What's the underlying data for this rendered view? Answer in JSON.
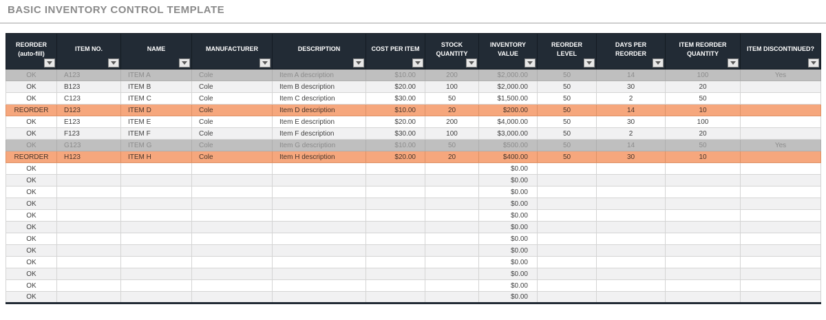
{
  "page": {
    "title": "BASIC INVENTORY CONTROL TEMPLATE"
  },
  "colors": {
    "header_bg": "#222B35",
    "reorder_row_bg": "#F6A77D",
    "discontinued_row_bg": "#BFBFBF",
    "discontinued_text": "#8C8C8C",
    "alt_row_bg": "#F1F1F2",
    "title_text": "#8A8A8A",
    "grid_line": "#D4D4D4"
  },
  "icons": {
    "filter_dropdown": "chevron-down triangle in gray square button"
  },
  "table": {
    "columns": [
      {
        "label": "REORDER (auto-fill)"
      },
      {
        "label": "ITEM NO."
      },
      {
        "label": "NAME"
      },
      {
        "label": "MANUFACTURER"
      },
      {
        "label": "DESCRIPTION"
      },
      {
        "label": "COST PER ITEM"
      },
      {
        "label": "STOCK QUANTITY"
      },
      {
        "label": "INVENTORY VALUE"
      },
      {
        "label": "REORDER LEVEL"
      },
      {
        "label": "DAYS PER REORDER"
      },
      {
        "label": "ITEM REORDER QUANTITY"
      },
      {
        "label": "ITEM DISCONTINUED?"
      }
    ],
    "rows": [
      {
        "status": "OK",
        "item_no": "A123",
        "name": "ITEM A",
        "manufacturer": "Cole",
        "description": "Item A description",
        "cost_per_item": "$10.00",
        "stock_quantity": "200",
        "inventory_value": "$2,000.00",
        "reorder_level": "50",
        "days_per_reorder": "14",
        "item_reorder_quantity": "100",
        "item_discontinued": "Yes",
        "variant": "gray"
      },
      {
        "status": "OK",
        "item_no": "B123",
        "name": "ITEM B",
        "manufacturer": "Cole",
        "description": "Item B description",
        "cost_per_item": "$20.00",
        "stock_quantity": "100",
        "inventory_value": "$2,000.00",
        "reorder_level": "50",
        "days_per_reorder": "30",
        "item_reorder_quantity": "20",
        "item_discontinued": "",
        "variant": "alt"
      },
      {
        "status": "OK",
        "item_no": "C123",
        "name": "ITEM C",
        "manufacturer": "Cole",
        "description": "Item C description",
        "cost_per_item": "$30.00",
        "stock_quantity": "50",
        "inventory_value": "$1,500.00",
        "reorder_level": "50",
        "days_per_reorder": "2",
        "item_reorder_quantity": "50",
        "item_discontinued": "",
        "variant": "white"
      },
      {
        "status": "REORDER",
        "item_no": "D123",
        "name": "ITEM D",
        "manufacturer": "Cole",
        "description": "Item D description",
        "cost_per_item": "$10.00",
        "stock_quantity": "20",
        "inventory_value": "$200.00",
        "reorder_level": "50",
        "days_per_reorder": "14",
        "item_reorder_quantity": "10",
        "item_discontinued": "",
        "variant": "orange"
      },
      {
        "status": "OK",
        "item_no": "E123",
        "name": "ITEM E",
        "manufacturer": "Cole",
        "description": "Item E description",
        "cost_per_item": "$20.00",
        "stock_quantity": "200",
        "inventory_value": "$4,000.00",
        "reorder_level": "50",
        "days_per_reorder": "30",
        "item_reorder_quantity": "100",
        "item_discontinued": "",
        "variant": "white"
      },
      {
        "status": "OK",
        "item_no": "F123",
        "name": "ITEM F",
        "manufacturer": "Cole",
        "description": "Item F description",
        "cost_per_item": "$30.00",
        "stock_quantity": "100",
        "inventory_value": "$3,000.00",
        "reorder_level": "50",
        "days_per_reorder": "2",
        "item_reorder_quantity": "20",
        "item_discontinued": "",
        "variant": "alt"
      },
      {
        "status": "OK",
        "item_no": "G123",
        "name": "ITEM G",
        "manufacturer": "Cole",
        "description": "Item G description",
        "cost_per_item": "$10.00",
        "stock_quantity": "50",
        "inventory_value": "$500.00",
        "reorder_level": "50",
        "days_per_reorder": "14",
        "item_reorder_quantity": "50",
        "item_discontinued": "Yes",
        "variant": "gray"
      },
      {
        "status": "REORDER",
        "item_no": "H123",
        "name": "ITEM H",
        "manufacturer": "Cole",
        "description": "Item H description",
        "cost_per_item": "$20.00",
        "stock_quantity": "20",
        "inventory_value": "$400.00",
        "reorder_level": "50",
        "days_per_reorder": "30",
        "item_reorder_quantity": "10",
        "item_discontinued": "",
        "variant": "orange"
      }
    ],
    "empty_rows": [
      {
        "status": "OK",
        "inventory_value": "$0.00",
        "variant": "white"
      },
      {
        "status": "OK",
        "inventory_value": "$0.00",
        "variant": "alt"
      },
      {
        "status": "OK",
        "inventory_value": "$0.00",
        "variant": "white"
      },
      {
        "status": "OK",
        "inventory_value": "$0.00",
        "variant": "alt"
      },
      {
        "status": "OK",
        "inventory_value": "$0.00",
        "variant": "white"
      },
      {
        "status": "OK",
        "inventory_value": "$0.00",
        "variant": "alt"
      },
      {
        "status": "OK",
        "inventory_value": "$0.00",
        "variant": "white"
      },
      {
        "status": "OK",
        "inventory_value": "$0.00",
        "variant": "alt"
      },
      {
        "status": "OK",
        "inventory_value": "$0.00",
        "variant": "white"
      },
      {
        "status": "OK",
        "inventory_value": "$0.00",
        "variant": "alt"
      },
      {
        "status": "OK",
        "inventory_value": "$0.00",
        "variant": "white"
      },
      {
        "status": "OK",
        "inventory_value": "$0.00",
        "variant": "alt"
      }
    ]
  }
}
